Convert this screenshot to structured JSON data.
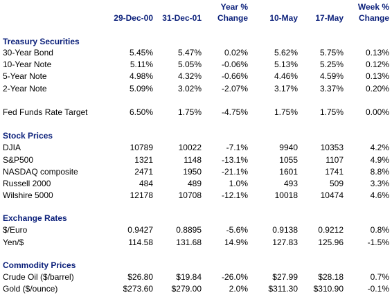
{
  "colors": {
    "heading": "#0a1f7a",
    "text": "#000000",
    "background": "#ffffff"
  },
  "header": {
    "col1": [
      "",
      "29-Dec-00"
    ],
    "col2": [
      "",
      "31-Dec-01"
    ],
    "col3": [
      "Year %",
      "Change"
    ],
    "col4": [
      "",
      "10-May"
    ],
    "col5": [
      "",
      "17-May"
    ],
    "col6": [
      "Week %",
      "Change"
    ]
  },
  "sections": [
    {
      "title": "Treasury Securities",
      "rows": [
        {
          "label": "30-Year Bond",
          "values": [
            "5.45%",
            "5.47%",
            "0.02%",
            "5.62%",
            "5.75%",
            "0.13%"
          ]
        },
        {
          "label": "10-Year Note",
          "values": [
            "5.11%",
            "5.05%",
            "-0.06%",
            "5.13%",
            "5.25%",
            "0.12%"
          ]
        },
        {
          "label": "5-Year Note",
          "values": [
            "4.98%",
            "4.32%",
            "-0.66%",
            "4.46%",
            "4.59%",
            "0.13%"
          ]
        },
        {
          "label": "2-Year Note",
          "values": [
            "5.09%",
            "3.02%",
            "-2.07%",
            "3.17%",
            "3.37%",
            "0.20%"
          ]
        },
        {
          "label": "Fed Funds Rate Target",
          "values": [
            "6.50%",
            "1.75%",
            "-4.75%",
            "1.75%",
            "1.75%",
            "0.00%"
          ]
        }
      ]
    },
    {
      "title": "Stock Prices",
      "rows": [
        {
          "label": "DJIA",
          "values": [
            "10789",
            "10022",
            "-7.1%",
            "9940",
            "10353",
            "4.2%"
          ]
        },
        {
          "label": "S&P500",
          "values": [
            "1321",
            "1148",
            "-13.1%",
            "1055",
            "1107",
            "4.9%"
          ]
        },
        {
          "label": "NASDAQ composite",
          "values": [
            "2471",
            "1950",
            "-21.1%",
            "1601",
            "1741",
            "8.8%"
          ]
        },
        {
          "label": "Russell 2000",
          "values": [
            "484",
            "489",
            "1.0%",
            "493",
            "509",
            "3.3%"
          ]
        },
        {
          "label": "Wilshire 5000",
          "values": [
            "12178",
            "10708",
            "-12.1%",
            "10018",
            "10474",
            "4.6%"
          ]
        }
      ]
    },
    {
      "title": "Exchange Rates",
      "rows": [
        {
          "label": "$/Euro",
          "values": [
            "0.9427",
            "0.8895",
            "-5.6%",
            "0.9138",
            "0.9212",
            "0.8%"
          ]
        },
        {
          "label": "Yen/$",
          "values": [
            "114.58",
            "131.68",
            "14.9%",
            "127.83",
            "125.96",
            "-1.5%"
          ]
        }
      ]
    },
    {
      "title": "Commodity Prices",
      "rows": [
        {
          "label": "Crude Oil ($/barrel)",
          "values": [
            "$26.80",
            "$19.84",
            "-26.0%",
            "$27.99",
            "$28.18",
            "0.7%"
          ]
        },
        {
          "label": "Gold ($/ounce)",
          "values": [
            "$273.60",
            "$279.00",
            "2.0%",
            "$311.30",
            "$310.90",
            "-0.1%"
          ]
        }
      ]
    }
  ]
}
